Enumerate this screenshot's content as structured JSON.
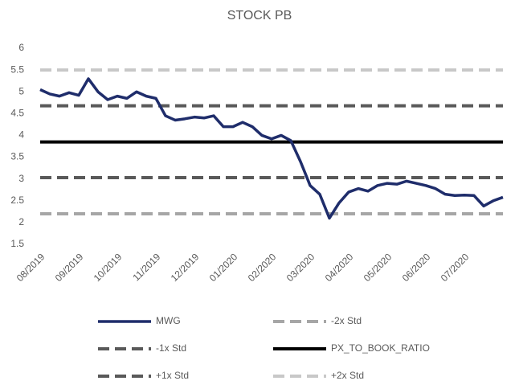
{
  "chart_data": {
    "type": "line",
    "title": "STOCK PB",
    "categories": [
      "08/2019",
      null,
      null,
      null,
      "09/2019",
      null,
      null,
      null,
      "10/2019",
      null,
      null,
      null,
      "11/2019",
      null,
      null,
      null,
      "12/2019",
      null,
      null,
      null,
      "01/2020",
      null,
      null,
      null,
      "02/2020",
      null,
      null,
      null,
      "03/2020",
      null,
      null,
      null,
      "04/2020",
      null,
      null,
      null,
      "05/2020",
      null,
      null,
      null,
      "06/2020",
      null,
      null,
      null,
      "07/2020",
      null,
      null,
      null,
      null
    ],
    "series": [
      {
        "name": "MWG",
        "color": "#1f2d6b",
        "values": [
          5.05,
          4.95,
          4.9,
          4.98,
          4.92,
          5.3,
          5.0,
          4.82,
          4.9,
          4.85,
          5.0,
          4.9,
          4.85,
          4.45,
          4.35,
          4.38,
          4.42,
          4.4,
          4.45,
          4.2,
          4.2,
          4.3,
          4.2,
          4.0,
          3.92,
          4.0,
          3.88,
          3.4,
          2.85,
          2.65,
          2.1,
          2.45,
          2.7,
          2.78,
          2.72,
          2.85,
          2.9,
          2.88,
          2.95,
          2.9,
          2.85,
          2.78,
          2.65,
          2.62,
          2.63,
          2.62,
          2.38,
          2.5,
          2.58
        ]
      },
      {
        "name": "-2x Std",
        "color": "#a6a6a6",
        "dashed": true,
        "value": 2.2
      },
      {
        "name": "-1x Std",
        "color": "#595959",
        "dashed": true,
        "value": 3.03
      },
      {
        "name": "PX_TO_BOOK_RATIO",
        "color": "#000000",
        "dashed": false,
        "value": 3.85
      },
      {
        "name": "+1x Std",
        "color": "#595959",
        "dashed": true,
        "value": 4.68
      },
      {
        "name": "+2x Std",
        "color": "#c8c8c8",
        "dashed": true,
        "value": 5.5
      }
    ],
    "ylim": [
      1.5,
      6
    ],
    "yticks": [
      1.5,
      2,
      2.5,
      3,
      3.5,
      4,
      4.5,
      5,
      5.5,
      6
    ],
    "grid": false
  }
}
